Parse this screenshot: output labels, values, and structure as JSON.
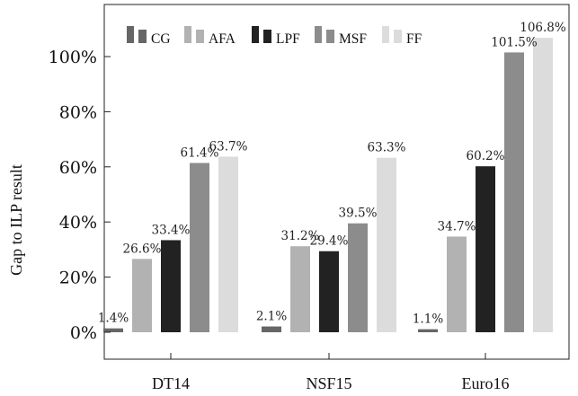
{
  "chart_data": {
    "type": "bar",
    "categories": [
      "DT14",
      "NSF15",
      "Euro16"
    ],
    "series": [
      {
        "name": "CG",
        "color": "#666666",
        "values": [
          1.4,
          2.1,
          1.1
        ]
      },
      {
        "name": "AFA",
        "color": "#b2b2b2",
        "values": [
          26.6,
          31.2,
          34.7
        ]
      },
      {
        "name": "LPF",
        "color": "#222222",
        "values": [
          33.4,
          29.4,
          60.2
        ]
      },
      {
        "name": "MSF",
        "color": "#8c8c8c",
        "values": [
          61.4,
          39.5,
          101.5
        ]
      },
      {
        "name": "FF",
        "color": "#dcdcdc",
        "values": [
          63.7,
          63.3,
          106.8
        ]
      }
    ],
    "data_labels": [
      [
        "1.4%",
        "2.1%",
        "1.1%"
      ],
      [
        "26.6%",
        "31.2%",
        "34.7%"
      ],
      [
        "33.4%",
        "29.4%",
        "60.2%"
      ],
      [
        "61.4%",
        "39.5%",
        "101.5%"
      ],
      [
        "63.7%",
        "63.3%",
        "106.8%"
      ]
    ],
    "ylabel": "Gap to ILP result",
    "ylim": [
      0,
      110
    ],
    "yticks": [
      0,
      20,
      40,
      60,
      80,
      100
    ],
    "ytick_labels": [
      "0%",
      "20%",
      "40%",
      "60%",
      "80%",
      "100%"
    ],
    "legend_position": "top-left",
    "grid": false
  }
}
